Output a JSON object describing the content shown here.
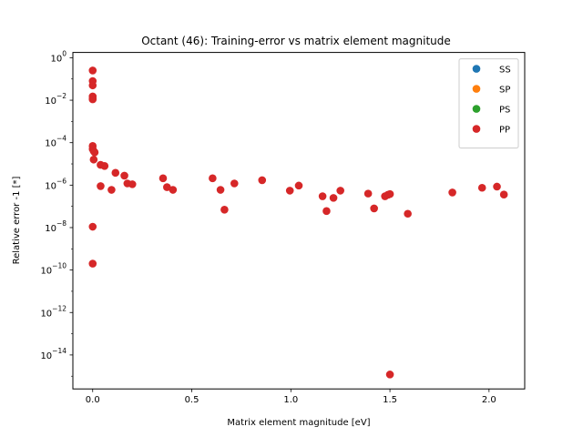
{
  "chart_data": {
    "type": "scatter",
    "title": "Octant (46): Training-error vs matrix element magnitude",
    "xlabel": "Matrix element magnitude [eV]",
    "ylabel": "Relative error -1 [*]",
    "yscale": "log",
    "xlim": [
      -0.1,
      2.18
    ],
    "ylim_exp": [
      -15.6,
      0.25
    ],
    "x_ticks": [
      0.0,
      0.5,
      1.0,
      1.5,
      2.0
    ],
    "x_tick_labels": [
      "0.0",
      "0.5",
      "1.0",
      "1.5",
      "2.0"
    ],
    "y_tick_exps": [
      0,
      -2,
      -4,
      -6,
      -8,
      -10,
      -12,
      -14
    ],
    "y_tick_labels": [
      {
        "base": "10",
        "exp": "0"
      },
      {
        "base": "10",
        "exp": "−2"
      },
      {
        "base": "10",
        "exp": "−4"
      },
      {
        "base": "10",
        "exp": "−6"
      },
      {
        "base": "10",
        "exp": "−8"
      },
      {
        "base": "10",
        "exp": "−10"
      },
      {
        "base": "10",
        "exp": "−12"
      },
      {
        "base": "10",
        "exp": "−14"
      }
    ],
    "grid": false,
    "legend_position": "top-right",
    "series": [
      {
        "name": "SS",
        "color": "#1f77b4",
        "points": []
      },
      {
        "name": "SP",
        "color": "#ff7f0e",
        "points": []
      },
      {
        "name": "PS",
        "color": "#2ca02c",
        "points": []
      },
      {
        "name": "PP",
        "color": "#d62728",
        "points": [
          [
            0.0,
            0.25
          ],
          [
            0.0,
            0.08
          ],
          [
            0.0,
            0.05
          ],
          [
            0.0,
            0.015
          ],
          [
            0.0,
            0.012
          ],
          [
            0.0,
            0.011
          ],
          [
            0.0,
            7e-05
          ],
          [
            0.0,
            5e-05
          ],
          [
            0.005,
            4e-05
          ],
          [
            0.01,
            3.5e-05
          ],
          [
            0.005,
            1.6e-05
          ],
          [
            0.0,
            1.1e-08
          ],
          [
            0.0,
            2e-10
          ],
          [
            0.04,
            9e-06
          ],
          [
            0.06,
            8e-06
          ],
          [
            0.04,
            9e-07
          ],
          [
            0.095,
            6e-07
          ],
          [
            0.115,
            3.8e-06
          ],
          [
            0.16,
            2.8e-06
          ],
          [
            0.175,
            1.2e-06
          ],
          [
            0.2,
            1.1e-06
          ],
          [
            0.355,
            2.1e-06
          ],
          [
            0.375,
            8e-07
          ],
          [
            0.405,
            6e-07
          ],
          [
            0.605,
            2.1e-06
          ],
          [
            0.645,
            6e-07
          ],
          [
            0.665,
            7e-08
          ],
          [
            0.715,
            1.2e-06
          ],
          [
            0.855,
            1.7e-06
          ],
          [
            0.995,
            5.5e-07
          ],
          [
            1.04,
            9.5e-07
          ],
          [
            1.16,
            3e-07
          ],
          [
            1.18,
            6e-08
          ],
          [
            1.215,
            2.5e-07
          ],
          [
            1.25,
            5.5e-07
          ],
          [
            1.39,
            4e-07
          ],
          [
            1.42,
            8e-08
          ],
          [
            1.475,
            3e-07
          ],
          [
            1.49,
            3.5e-07
          ],
          [
            1.5,
            3.8e-07
          ],
          [
            1.5,
            1.2e-15
          ],
          [
            1.59,
            4.5e-08
          ],
          [
            1.815,
            4.5e-07
          ],
          [
            1.965,
            7.5e-07
          ],
          [
            2.04,
            8.5e-07
          ],
          [
            2.075,
            3.6e-07
          ]
        ]
      }
    ]
  }
}
